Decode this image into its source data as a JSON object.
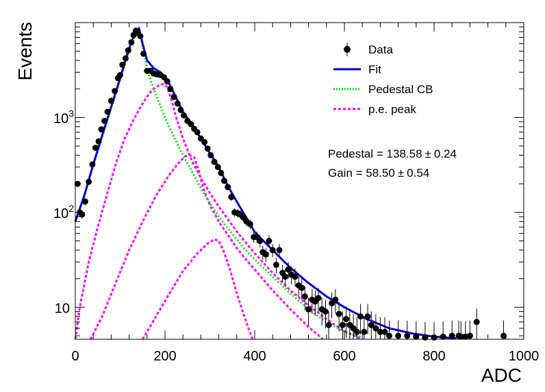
{
  "chart_data": {
    "type": "scatter",
    "xlabel": "ADC",
    "ylabel": "Events",
    "xlim": [
      0,
      1000
    ],
    "ylim": [
      4.6,
      10000
    ],
    "yscale": "log",
    "x_ticks": [
      0,
      200,
      400,
      600,
      800,
      1000
    ],
    "x_tick_labels": [
      "0",
      "200",
      "400",
      "600",
      "800",
      "1000"
    ],
    "y_ticks": [
      10,
      100,
      1000
    ],
    "y_tick_labels": [
      "10",
      "10",
      "10"
    ],
    "y_tick_exponents": [
      "",
      "2",
      "3"
    ],
    "legend_position": "top-right",
    "legend": [
      {
        "label": "Data",
        "style": "marker",
        "color": "#000000"
      },
      {
        "label": "Fit",
        "style": "line",
        "color": "#0000cc"
      },
      {
        "label": "Pedestal CB",
        "style": "dotted",
        "color": "#00dd00"
      },
      {
        "label": "p.e. peak",
        "style": "dashed",
        "color": "#ff00ff"
      }
    ],
    "annotations": [
      {
        "text_a": "Pedestal = 138.58",
        "pm": "±",
        "text_b": "0.24"
      },
      {
        "text_a": "Gain = 58.50",
        "pm": "±",
        "text_b": "0.54"
      }
    ],
    "data_points": [
      [
        5,
        200
      ],
      [
        10,
        100
      ],
      [
        15,
        95
      ],
      [
        22,
        130
      ],
      [
        30,
        210
      ],
      [
        38,
        320
      ],
      [
        45,
        480
      ],
      [
        52,
        560
      ],
      [
        58,
        750
      ],
      [
        65,
        920
      ],
      [
        72,
        1150
      ],
      [
        80,
        1500
      ],
      [
        88,
        1900
      ],
      [
        95,
        2600
      ],
      [
        100,
        2800
      ],
      [
        105,
        3600
      ],
      [
        112,
        4200
      ],
      [
        118,
        5100
      ],
      [
        125,
        6200
      ],
      [
        130,
        7400
      ],
      [
        135,
        8200
      ],
      [
        140,
        7800
      ],
      [
        145,
        7200
      ],
      [
        152,
        4700
      ],
      [
        160,
        3100
      ],
      [
        168,
        3100
      ],
      [
        175,
        2900
      ],
      [
        182,
        2850
      ],
      [
        190,
        2800
      ],
      [
        198,
        2650
      ],
      [
        205,
        2400
      ],
      [
        212,
        2000
      ],
      [
        220,
        1650
      ],
      [
        228,
        1400
      ],
      [
        235,
        1200
      ],
      [
        242,
        1050
      ],
      [
        250,
        920
      ],
      [
        258,
        850
      ],
      [
        265,
        760
      ],
      [
        272,
        700
      ],
      [
        280,
        600
      ],
      [
        288,
        550
      ],
      [
        295,
        470
      ],
      [
        302,
        400
      ],
      [
        310,
        340
      ],
      [
        318,
        300
      ],
      [
        325,
        260
      ],
      [
        332,
        215
      ],
      [
        340,
        185
      ],
      [
        348,
        145
      ],
      [
        355,
        100
      ],
      [
        362,
        98
      ],
      [
        368,
        95
      ],
      [
        375,
        88
      ],
      [
        382,
        80
      ],
      [
        390,
        75
      ],
      [
        398,
        55
      ],
      [
        405,
        55
      ],
      [
        412,
        50
      ],
      [
        418,
        38
      ],
      [
        425,
        36
      ],
      [
        432,
        50
      ],
      [
        440,
        40
      ],
      [
        448,
        28
      ],
      [
        455,
        40
      ],
      [
        462,
        23
      ],
      [
        468,
        21
      ],
      [
        475,
        25
      ],
      [
        482,
        22
      ],
      [
        490,
        21
      ],
      [
        498,
        17
      ],
      [
        505,
        16
      ],
      [
        512,
        13
      ],
      [
        520,
        9.5
      ],
      [
        528,
        12
      ],
      [
        535,
        11.5
      ],
      [
        542,
        12.5
      ],
      [
        550,
        9.5
      ],
      [
        558,
        9
      ],
      [
        565,
        6.5
      ],
      [
        572,
        11
      ],
      [
        580,
        12
      ],
      [
        588,
        8.5
      ],
      [
        596,
        6.5
      ],
      [
        604,
        7.5
      ],
      [
        612,
        6.5
      ],
      [
        620,
        6
      ],
      [
        628,
        5.5
      ],
      [
        636,
        8
      ],
      [
        644,
        5.5
      ],
      [
        652,
        8
      ],
      [
        660,
        6.5
      ],
      [
        670,
        6
      ],
      [
        680,
        5.5
      ],
      [
        690,
        5.5
      ],
      [
        700,
        5
      ],
      [
        720,
        5
      ],
      [
        740,
        5
      ],
      [
        760,
        4.9
      ],
      [
        780,
        4.8
      ],
      [
        800,
        4.8
      ],
      [
        820,
        4.9
      ],
      [
        840,
        5
      ],
      [
        855,
        5
      ],
      [
        860,
        4.9
      ],
      [
        870,
        4.9
      ],
      [
        880,
        5
      ],
      [
        895,
        7
      ],
      [
        955,
        5
      ]
    ],
    "fit_curve": [
      [
        0,
        80
      ],
      [
        20,
        150
      ],
      [
        40,
        320
      ],
      [
        60,
        650
      ],
      [
        80,
        1300
      ],
      [
        100,
        2600
      ],
      [
        115,
        4500
      ],
      [
        125,
        6300
      ],
      [
        135,
        8100
      ],
      [
        142,
        8700
      ],
      [
        150,
        6000
      ],
      [
        160,
        4000
      ],
      [
        175,
        3300
      ],
      [
        190,
        3000
      ],
      [
        205,
        2500
      ],
      [
        220,
        1800
      ],
      [
        240,
        1150
      ],
      [
        260,
        840
      ],
      [
        280,
        600
      ],
      [
        300,
        420
      ],
      [
        320,
        300
      ],
      [
        340,
        190
      ],
      [
        360,
        130
      ],
      [
        380,
        90
      ],
      [
        400,
        62
      ],
      [
        440,
        40
      ],
      [
        480,
        26
      ],
      [
        520,
        18
      ],
      [
        560,
        13
      ],
      [
        600,
        10
      ],
      [
        650,
        7.5
      ],
      [
        700,
        6
      ],
      [
        750,
        5.3
      ],
      [
        800,
        4.9
      ],
      [
        850,
        4.7
      ]
    ],
    "pedestal_curve": [
      [
        0,
        80
      ],
      [
        20,
        150
      ],
      [
        40,
        310
      ],
      [
        60,
        620
      ],
      [
        80,
        1250
      ],
      [
        100,
        2500
      ],
      [
        120,
        5000
      ],
      [
        135,
        7800
      ],
      [
        142,
        8600
      ],
      [
        150,
        5600
      ],
      [
        160,
        3300
      ],
      [
        170,
        2300
      ],
      [
        185,
        1500
      ],
      [
        200,
        1000
      ],
      [
        220,
        620
      ],
      [
        240,
        400
      ],
      [
        260,
        270
      ],
      [
        280,
        180
      ],
      [
        300,
        125
      ],
      [
        320,
        90
      ],
      [
        340,
        68
      ],
      [
        360,
        52
      ],
      [
        380,
        40
      ],
      [
        400,
        32
      ],
      [
        440,
        21
      ],
      [
        480,
        14
      ],
      [
        520,
        9.5
      ],
      [
        560,
        7
      ],
      [
        600,
        5.5
      ],
      [
        640,
        4.8
      ]
    ],
    "pe_peaks": [
      [
        [
          0,
          4.6
        ],
        [
          10,
          10
        ],
        [
          30,
          30
        ],
        [
          50,
          70
        ],
        [
          70,
          150
        ],
        [
          90,
          320
        ],
        [
          110,
          600
        ],
        [
          130,
          950
        ],
        [
          150,
          1400
        ],
        [
          165,
          1800
        ],
        [
          180,
          2100
        ],
        [
          195,
          2250
        ],
        [
          205,
          2100
        ],
        [
          215,
          1500
        ],
        [
          225,
          1000
        ],
        [
          240,
          600
        ],
        [
          260,
          350
        ],
        [
          280,
          230
        ],
        [
          300,
          160
        ],
        [
          320,
          115
        ],
        [
          340,
          85
        ],
        [
          360,
          63
        ],
        [
          380,
          48
        ],
        [
          400,
          37
        ],
        [
          440,
          23
        ],
        [
          480,
          15
        ],
        [
          520,
          10.5
        ],
        [
          560,
          7.5
        ],
        [
          600,
          5.6
        ],
        [
          640,
          4.6
        ]
      ],
      [
        [
          34,
          4.6
        ],
        [
          60,
          8
        ],
        [
          90,
          18
        ],
        [
          120,
          40
        ],
        [
          150,
          80
        ],
        [
          180,
          150
        ],
        [
          210,
          250
        ],
        [
          230,
          330
        ],
        [
          245,
          390
        ],
        [
          255,
          400
        ],
        [
          265,
          380
        ],
        [
          275,
          280
        ],
        [
          285,
          180
        ],
        [
          300,
          120
        ],
        [
          320,
          80
        ],
        [
          340,
          58
        ],
        [
          360,
          42
        ],
        [
          380,
          32
        ],
        [
          400,
          25
        ],
        [
          440,
          15
        ],
        [
          480,
          9.5
        ],
        [
          520,
          6.2
        ],
        [
          552,
          4.6
        ]
      ],
      [
        [
          150,
          4.6
        ],
        [
          180,
          8
        ],
        [
          210,
          14
        ],
        [
          240,
          24
        ],
        [
          270,
          36
        ],
        [
          295,
          47
        ],
        [
          310,
          52
        ],
        [
          320,
          50
        ],
        [
          330,
          40
        ],
        [
          345,
          25
        ],
        [
          360,
          14
        ],
        [
          375,
          8.5
        ],
        [
          395,
          4.6
        ]
      ]
    ]
  }
}
